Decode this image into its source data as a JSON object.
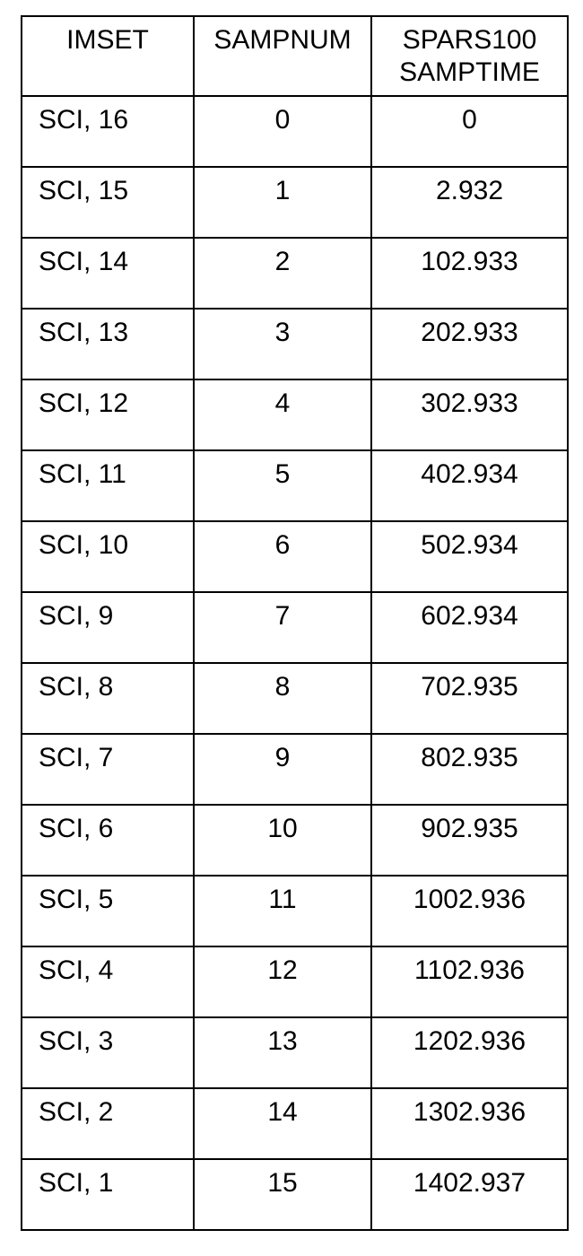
{
  "table": {
    "headers": {
      "imset": "IMSET",
      "sampnum": "SAMPNUM",
      "samptime_line1": "SPARS100",
      "samptime_line2": "SAMPTIME"
    },
    "rows": [
      {
        "imset": "SCI, 16",
        "sampnum": "0",
        "samptime": "0"
      },
      {
        "imset": "SCI, 15",
        "sampnum": "1",
        "samptime": "2.932"
      },
      {
        "imset": "SCI, 14",
        "sampnum": "2",
        "samptime": "102.933"
      },
      {
        "imset": "SCI, 13",
        "sampnum": "3",
        "samptime": "202.933"
      },
      {
        "imset": "SCI, 12",
        "sampnum": "4",
        "samptime": "302.933"
      },
      {
        "imset": "SCI, 11",
        "sampnum": "5",
        "samptime": "402.934"
      },
      {
        "imset": "SCI, 10",
        "sampnum": "6",
        "samptime": "502.934"
      },
      {
        "imset": "SCI, 9",
        "sampnum": "7",
        "samptime": "602.934"
      },
      {
        "imset": "SCI, 8",
        "sampnum": "8",
        "samptime": "702.935"
      },
      {
        "imset": "SCI, 7",
        "sampnum": "9",
        "samptime": "802.935"
      },
      {
        "imset": "SCI, 6",
        "sampnum": "10",
        "samptime": "902.935"
      },
      {
        "imset": "SCI, 5",
        "sampnum": "11",
        "samptime": "1002.936"
      },
      {
        "imset": "SCI, 4",
        "sampnum": "12",
        "samptime": "1102.936"
      },
      {
        "imset": "SCI, 3",
        "sampnum": "13",
        "samptime": "1202.936"
      },
      {
        "imset": "SCI, 2",
        "sampnum": "14",
        "samptime": "1302.936"
      },
      {
        "imset": "SCI, 1",
        "sampnum": "15",
        "samptime": "1402.937"
      }
    ]
  }
}
